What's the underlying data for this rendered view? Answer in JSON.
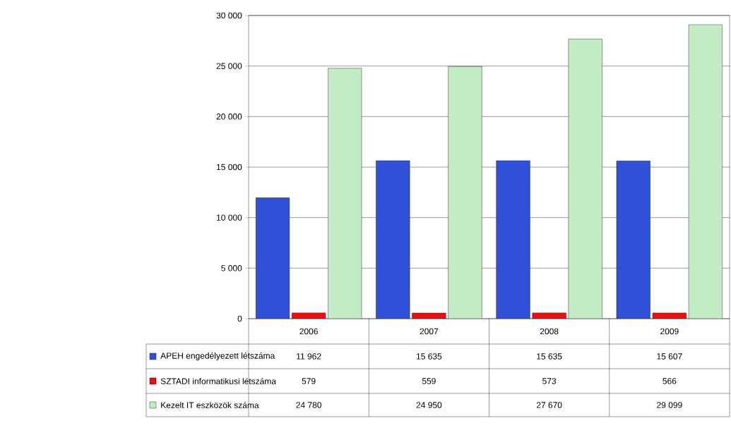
{
  "chart_data": {
    "type": "bar",
    "categories": [
      "2006",
      "2007",
      "2008",
      "2009"
    ],
    "series": [
      {
        "name": "APEH engedélyezett létszáma",
        "color": "#3050d8",
        "values": [
          11962,
          15635,
          15635,
          15607
        ],
        "value_labels": [
          "11 962",
          "15 635",
          "15 635",
          "15 607"
        ]
      },
      {
        "name": "SZTADI informatikusi létszáma",
        "color": "#e81010",
        "values": [
          579,
          559,
          573,
          566
        ],
        "value_labels": [
          "579",
          "559",
          "573",
          "566"
        ]
      },
      {
        "name": "Kezelt IT eszközök száma",
        "color": "#c4ecc4",
        "values": [
          24780,
          24950,
          27670,
          29099
        ],
        "value_labels": [
          "24 780",
          "24 950",
          "27 670",
          "29 099"
        ]
      }
    ],
    "ylim": [
      0,
      30000
    ],
    "yticks": [
      {
        "value": 0,
        "label": "0"
      },
      {
        "value": 5000,
        "label": "5 000"
      },
      {
        "value": 10000,
        "label": "10 000"
      },
      {
        "value": 15000,
        "label": "15 000"
      },
      {
        "value": 20000,
        "label": "20 000"
      },
      {
        "value": 25000,
        "label": "25 000"
      },
      {
        "value": 30000,
        "label": "30 000"
      }
    ],
    "grid": "y",
    "legend": "bottom left"
  }
}
